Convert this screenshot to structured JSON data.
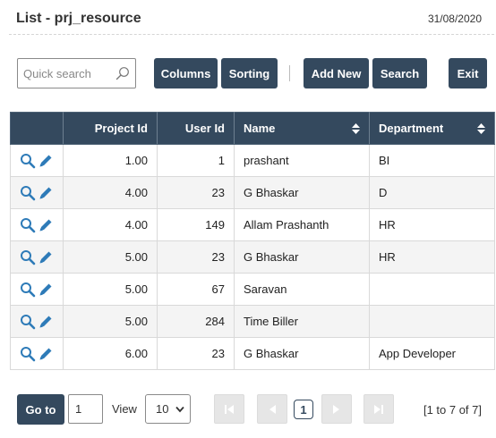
{
  "header": {
    "title": "List - prj_resource",
    "date": "31/08/2020"
  },
  "toolbar": {
    "search_placeholder": "Quick search",
    "columns_label": "Columns",
    "sorting_label": "Sorting",
    "add_new_label": "Add New",
    "search_label": "Search",
    "exit_label": "Exit"
  },
  "table": {
    "columns": [
      "Project Id",
      "User Id",
      "Name",
      "Department"
    ],
    "rows": [
      {
        "project_id": "1.00",
        "user_id": "1",
        "name": "prashant",
        "department": "BI"
      },
      {
        "project_id": "4.00",
        "user_id": "23",
        "name": "G Bhaskar",
        "department": "D"
      },
      {
        "project_id": "4.00",
        "user_id": "149",
        "name": "Allam Prashanth",
        "department": "HR"
      },
      {
        "project_id": "5.00",
        "user_id": "23",
        "name": "G Bhaskar",
        "department": "HR"
      },
      {
        "project_id": "5.00",
        "user_id": "67",
        "name": "Saravan",
        "department": ""
      },
      {
        "project_id": "5.00",
        "user_id": "284",
        "name": "Time Biller",
        "department": ""
      },
      {
        "project_id": "6.00",
        "user_id": "23",
        "name": "G Bhaskar",
        "department": "App Developer"
      }
    ]
  },
  "pager": {
    "goto_label": "Go to",
    "page_value": "1",
    "view_label": "View",
    "view_value": "10",
    "current_page": "1",
    "info": "[1 to 7 of 7]"
  },
  "colors": {
    "primary": "#34495e",
    "row_alt": "#f4f4f4",
    "icon": "#2e7bb8"
  },
  "icons": {
    "action_view": "magnifier-icon",
    "action_edit": "pencil-icon"
  }
}
